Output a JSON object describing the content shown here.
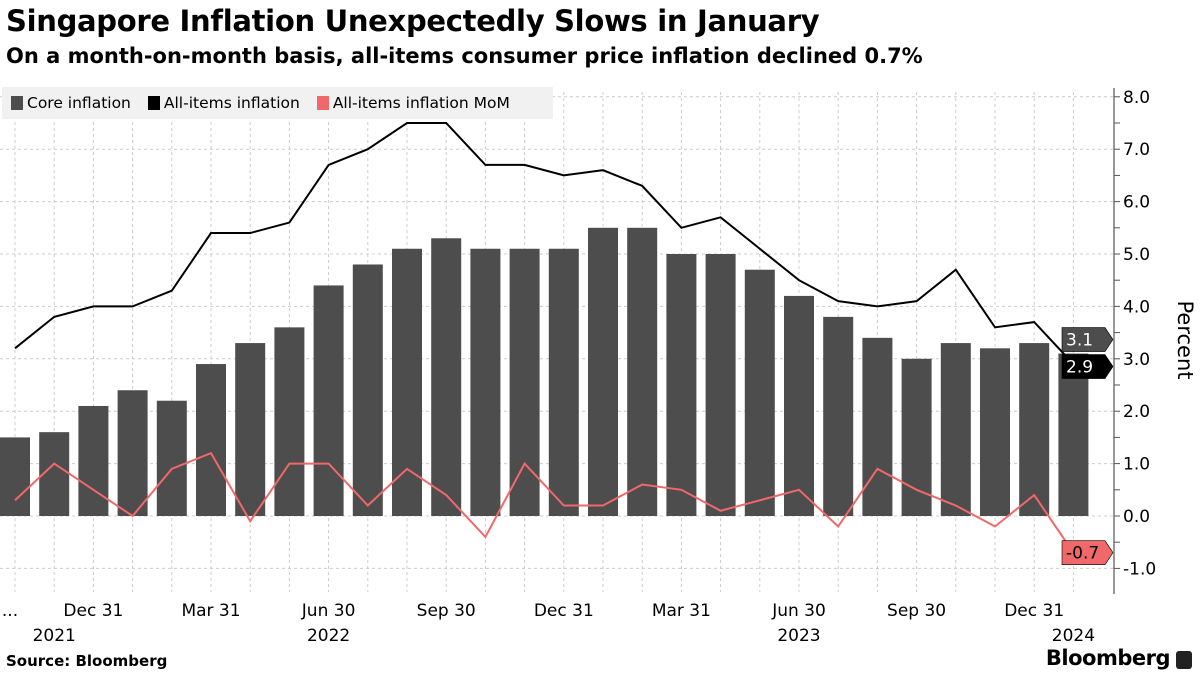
{
  "title": "Singapore Inflation Unexpectedly Slows in January",
  "subtitle": "On a month-on-month basis, all-items consumer price inflation declined 0.7%",
  "source": "Source: Bloomberg",
  "brand": "Bloomberg",
  "chart_data": {
    "type": "bar",
    "ylabel": "Percent",
    "ylim": [
      -1.4,
      8.2
    ],
    "y_ticks": [
      "8.0",
      "7.0",
      "6.0",
      "5.0",
      "4.0",
      "3.0",
      "2.0",
      "1.0",
      "0.0",
      "-1.0"
    ],
    "grid": true,
    "legend_position": "top-left",
    "categories": [
      "Oct 2021",
      "Nov 2021",
      "Dec 2021",
      "Jan 2022",
      "Feb 2022",
      "Mar 2022",
      "Apr 2022",
      "May 2022",
      "Jun 2022",
      "Jul 2022",
      "Aug 2022",
      "Sep 2022",
      "Oct 2022",
      "Nov 2022",
      "Dec 2022",
      "Jan 2023",
      "Feb 2023",
      "Mar 2023",
      "Apr 2023",
      "May 2023",
      "Jun 2023",
      "Jul 2023",
      "Aug 2023",
      "Sep 2023",
      "Oct 2023",
      "Nov 2023",
      "Dec 2023",
      "Jan 2024"
    ],
    "x_tick_labels": [
      {
        "index": -1,
        "label": "..."
      },
      {
        "index": 2,
        "label": "Dec 31",
        "year": "2021"
      },
      {
        "index": 5,
        "label": "Mar 31"
      },
      {
        "index": 8,
        "label": "Jun 30",
        "year": "2022"
      },
      {
        "index": 11,
        "label": "Sep 30"
      },
      {
        "index": 14,
        "label": "Dec 31"
      },
      {
        "index": 17,
        "label": "Mar 31"
      },
      {
        "index": 20,
        "label": "Jun 30",
        "year": "2023"
      },
      {
        "index": 23,
        "label": "Sep 30"
      },
      {
        "index": 26,
        "label": "Dec 31"
      },
      {
        "index": 27,
        "label": "",
        "year": "2024"
      }
    ],
    "series": [
      {
        "name": "Core inflation",
        "kind": "bar",
        "color": "#4d4d4d",
        "values": [
          1.5,
          1.6,
          2.1,
          2.4,
          2.2,
          2.9,
          3.3,
          3.6,
          4.4,
          4.8,
          5.1,
          5.3,
          5.1,
          5.1,
          5.1,
          5.5,
          5.5,
          5.0,
          5.0,
          4.7,
          4.2,
          3.8,
          3.4,
          3.0,
          3.3,
          3.2,
          3.3,
          3.1
        ],
        "last_label": "3.1"
      },
      {
        "name": "All-items inflation",
        "kind": "line",
        "color": "#000000",
        "values": [
          3.2,
          3.8,
          4.0,
          4.0,
          4.3,
          5.4,
          5.4,
          5.6,
          6.7,
          7.0,
          7.5,
          7.5,
          6.7,
          6.7,
          6.5,
          6.6,
          6.3,
          5.5,
          5.7,
          5.1,
          4.5,
          4.1,
          4.0,
          4.1,
          4.7,
          3.6,
          3.7,
          2.9
        ],
        "last_label": "2.9"
      },
      {
        "name": "All-items inflation MoM",
        "kind": "line",
        "color": "#f0686a",
        "values": [
          0.3,
          1.0,
          0.5,
          0.0,
          0.9,
          1.2,
          -0.1,
          1.0,
          1.0,
          0.2,
          0.9,
          0.4,
          -0.4,
          1.0,
          0.2,
          0.2,
          0.6,
          0.5,
          0.1,
          0.3,
          0.5,
          -0.2,
          0.9,
          0.5,
          0.2,
          -0.2,
          0.4,
          -0.7
        ],
        "last_label": "-0.7"
      }
    ]
  }
}
